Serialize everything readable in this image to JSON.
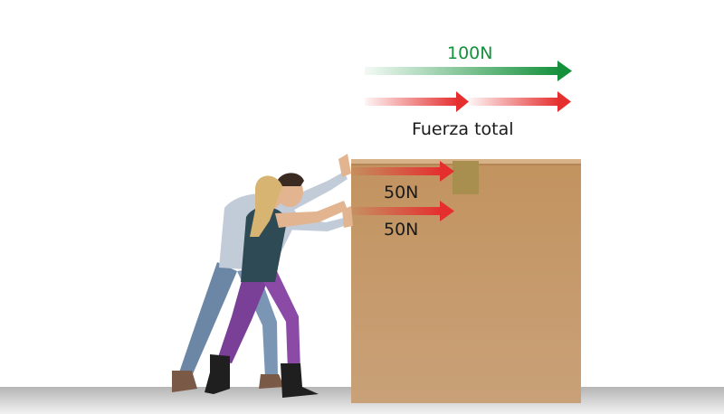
{
  "diagram": {
    "total_force_value": "100N",
    "total_force_caption": "Fuerza total",
    "forces": [
      {
        "label": "50N"
      },
      {
        "label": "50N"
      }
    ]
  },
  "colors": {
    "total_arrow": "#15913c",
    "force_arrow": "#e52f2f",
    "box": "#c59a6b",
    "floor": "#cfcfcf",
    "tape": "#a88e4f"
  },
  "icons": {
    "figure_1": "woman-pushing-figure",
    "figure_2": "man-pushing-figure",
    "box": "cardboard-box"
  }
}
